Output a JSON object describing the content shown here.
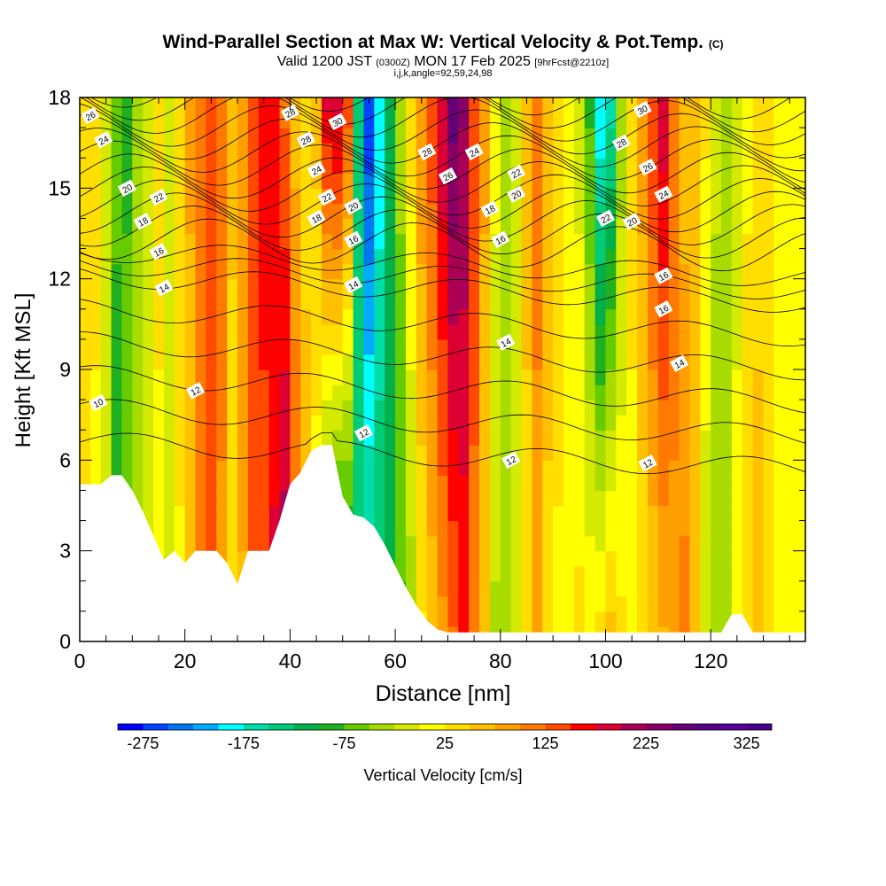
{
  "header": {
    "title_main": "Wind-Parallel Section at Max W: Vertical Velocity & Pot.Temp.",
    "title_tag": "(C)",
    "valid_prefix": "Valid 1200 JST",
    "valid_zulu": "(0300Z)",
    "valid_date": "MON 17 Feb 2025",
    "forecast": "[9hrFcst@2210z]",
    "indices": "i,j,k,angle=92,59,24,98"
  },
  "chart_data": {
    "type": "heatmap",
    "xlabel": "Distance [nm]",
    "ylabel": "Height [Kft MSL]",
    "xlim": [
      0,
      138
    ],
    "ylim": [
      0,
      18
    ],
    "x_ticks": [
      0,
      20,
      40,
      60,
      80,
      100,
      120
    ],
    "y_ticks": [
      0,
      3,
      6,
      9,
      12,
      15,
      18
    ],
    "colorbar": {
      "label": "Vertical Velocity [cm/s]",
      "min": -300,
      "max": 350,
      "step": 25,
      "tick_values": [
        -275,
        -175,
        -75,
        25,
        125,
        225,
        325
      ],
      "colors": [
        "#0000ff",
        "#0044ff",
        "#0077ee",
        "#00aaff",
        "#00ffff",
        "#00ddaa",
        "#00cc77",
        "#00b04a",
        "#20b020",
        "#66cc00",
        "#a8dc00",
        "#d4ea00",
        "#ffff00",
        "#ffde00",
        "#ffc000",
        "#ffa000",
        "#ff7a00",
        "#ff4a00",
        "#ff0000",
        "#dd0033",
        "#aa0055",
        "#880066",
        "#660077",
        "#550088",
        "#550099",
        "#440088"
      ]
    },
    "vertical_velocity_columns": {
      "description_units": "cm/s",
      "x": [
        1,
        3,
        5,
        7,
        9,
        11,
        13,
        15,
        17,
        19,
        21,
        23,
        25,
        27,
        29,
        31,
        33,
        35,
        37,
        39,
        41,
        43,
        45,
        47,
        49,
        51,
        53,
        55,
        57,
        59,
        61,
        63,
        65,
        67,
        69,
        71,
        73,
        75,
        77,
        79,
        81,
        83,
        85,
        87,
        89,
        91,
        93,
        95,
        97,
        99,
        101,
        103,
        105,
        107,
        109,
        111,
        113,
        115,
        117,
        119,
        121,
        123,
        125,
        127,
        129,
        131,
        133,
        135,
        137
      ],
      "w_low": [
        40,
        20,
        -30,
        -110,
        -60,
        -40,
        -20,
        20,
        -10,
        20,
        60,
        110,
        130,
        90,
        30,
        70,
        120,
        140,
        180,
        230,
        150,
        80,
        0,
        -140,
        -170,
        -150,
        -130,
        -120,
        -110,
        -100,
        -80,
        -40,
        20,
        60,
        90,
        120,
        150,
        110,
        60,
        -30,
        -50,
        -20,
        40,
        80,
        40,
        20,
        10,
        30,
        20,
        40,
        60,
        30,
        10,
        30,
        50,
        70,
        90,
        110,
        60,
        -20,
        -40,
        -30,
        10,
        40,
        60,
        30,
        20,
        10,
        20
      ],
      "w_high": [
        50,
        30,
        0,
        -60,
        -80,
        -40,
        -10,
        30,
        0,
        40,
        80,
        120,
        140,
        120,
        60,
        100,
        150,
        160,
        160,
        120,
        60,
        30,
        60,
        180,
        200,
        140,
        -150,
        -270,
        -200,
        -120,
        -40,
        40,
        100,
        140,
        200,
        260,
        230,
        150,
        80,
        10,
        -30,
        -10,
        60,
        120,
        70,
        40,
        10,
        -10,
        -80,
        -200,
        -160,
        -40,
        40,
        90,
        150,
        190,
        120,
        60,
        70,
        30,
        -20,
        -30,
        -10,
        20,
        40,
        30,
        20,
        10,
        10
      ]
    },
    "theta_contours": {
      "units": "K (labels show last two digits)",
      "label_values": [
        10,
        12,
        14,
        16,
        18,
        20,
        22,
        24,
        26,
        28,
        30
      ]
    },
    "contour_labels": [
      {
        "text": "26",
        "x": 2,
        "y": 17.4
      },
      {
        "text": "24",
        "x": 4.5,
        "y": 16.6
      },
      {
        "text": "20",
        "x": 9,
        "y": 15.0
      },
      {
        "text": "22",
        "x": 15,
        "y": 14.7
      },
      {
        "text": "18",
        "x": 12,
        "y": 13.9
      },
      {
        "text": "16",
        "x": 15,
        "y": 12.9
      },
      {
        "text": "14",
        "x": 16,
        "y": 11.7
      },
      {
        "text": "12",
        "x": 22,
        "y": 8.3
      },
      {
        "text": "10",
        "x": 3.5,
        "y": 7.9
      },
      {
        "text": "28",
        "x": 40,
        "y": 17.5
      },
      {
        "text": "30",
        "x": 49,
        "y": 17.2
      },
      {
        "text": "28",
        "x": 43,
        "y": 16.6
      },
      {
        "text": "24",
        "x": 45,
        "y": 15.6
      },
      {
        "text": "22",
        "x": 47,
        "y": 14.7
      },
      {
        "text": "20",
        "x": 52,
        "y": 14.4
      },
      {
        "text": "18",
        "x": 45,
        "y": 14.0
      },
      {
        "text": "16",
        "x": 52,
        "y": 13.3
      },
      {
        "text": "14",
        "x": 52,
        "y": 11.8
      },
      {
        "text": "12",
        "x": 54,
        "y": 6.9
      },
      {
        "text": "28",
        "x": 66,
        "y": 16.2
      },
      {
        "text": "26",
        "x": 70,
        "y": 15.4
      },
      {
        "text": "24",
        "x": 75,
        "y": 16.2
      },
      {
        "text": "22",
        "x": 83,
        "y": 15.5
      },
      {
        "text": "20",
        "x": 83,
        "y": 14.8
      },
      {
        "text": "18",
        "x": 78,
        "y": 14.3
      },
      {
        "text": "16",
        "x": 80,
        "y": 13.3
      },
      {
        "text": "14",
        "x": 81,
        "y": 9.9
      },
      {
        "text": "12",
        "x": 82,
        "y": 6.0
      },
      {
        "text": "30",
        "x": 107,
        "y": 17.6
      },
      {
        "text": "28",
        "x": 103,
        "y": 16.5
      },
      {
        "text": "26",
        "x": 108,
        "y": 15.7
      },
      {
        "text": "24",
        "x": 111,
        "y": 14.8
      },
      {
        "text": "22",
        "x": 100,
        "y": 14.0
      },
      {
        "text": "20",
        "x": 105,
        "y": 13.9
      },
      {
        "text": "16",
        "x": 111,
        "y": 12.1
      },
      {
        "text": "16",
        "x": 111,
        "y": 11.0
      },
      {
        "text": "14",
        "x": 114,
        "y": 9.2
      },
      {
        "text": "12",
        "x": 108,
        "y": 5.9
      }
    ],
    "terrain": {
      "units": "Kft MSL",
      "x": [
        0,
        2,
        4,
        6,
        8,
        10,
        12,
        14,
        16,
        18,
        20,
        22,
        24,
        26,
        28,
        30,
        32,
        34,
        36,
        38,
        40,
        42,
        44,
        46,
        48,
        50,
        52,
        54,
        56,
        58,
        60,
        62,
        64,
        66,
        68,
        70,
        72,
        74,
        76,
        78,
        80,
        82,
        84,
        86,
        88,
        90,
        92,
        94,
        96,
        98,
        100,
        102,
        104,
        106,
        108,
        110,
        112,
        114,
        116,
        118,
        120,
        122,
        124,
        126,
        128,
        130,
        132,
        134,
        136,
        138
      ],
      "h": [
        5.2,
        5.2,
        5.2,
        5.5,
        5.5,
        5.0,
        4.3,
        3.5,
        2.7,
        3.0,
        2.6,
        3.0,
        3.0,
        3.0,
        2.6,
        1.9,
        3.0,
        3.0,
        3.0,
        4.0,
        5.2,
        5.6,
        6.3,
        6.5,
        6.5,
        4.8,
        4.2,
        4.1,
        3.8,
        3.2,
        2.5,
        1.8,
        1.2,
        0.7,
        0.4,
        0.3,
        0.3,
        0.3,
        0.3,
        0.3,
        0.3,
        0.3,
        0.3,
        0.3,
        0.3,
        0.3,
        0.3,
        0.3,
        0.3,
        0.3,
        0.3,
        0.3,
        0.3,
        0.3,
        0.3,
        0.3,
        0.3,
        0.3,
        0.3,
        0.3,
        0.3,
        0.3,
        0.9,
        0.9,
        0.3,
        0.3,
        0.3,
        0.3,
        0.3,
        0.3
      ]
    }
  }
}
